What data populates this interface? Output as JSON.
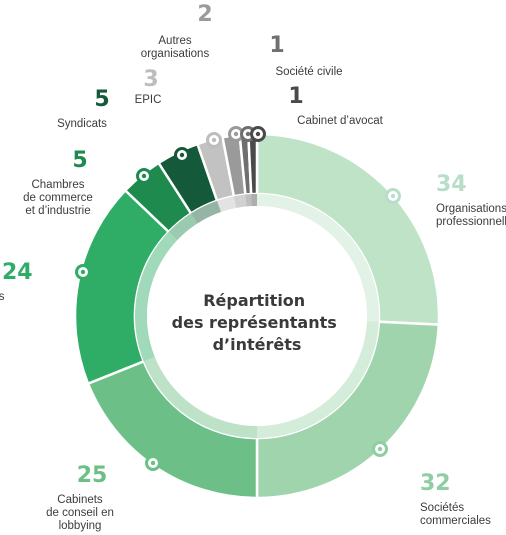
{
  "chart_data": {
    "type": "pie",
    "title": "Répartition des représentants d’intérêts",
    "title_lines": [
      "Répartition",
      "des représentants",
      "d’intérêts"
    ],
    "slices": [
      {
        "label": "Organisations professionnelles",
        "label_lines": [
          "Organisations",
          "professionnelles"
        ],
        "value": 34,
        "color": "#bfe3c7",
        "value_color": "#b8deca"
      },
      {
        "label": "Sociétés commerciales",
        "label_lines": [
          "Sociétés",
          "commerciales"
        ],
        "value": 32,
        "color": "#9fd4ad",
        "value_color": "#8fcda2"
      },
      {
        "label": "Cabinets de conseil en lobbying",
        "label_lines": [
          "Cabinets",
          "de conseil en",
          "lobbying"
        ],
        "value": 25,
        "color": "#6cbf86",
        "value_color": "#6cbf86"
      },
      {
        "label": "Associations",
        "label_lines": [
          "Associations"
        ],
        "value": 24,
        "color": "#2fad66",
        "value_color": "#2fad66"
      },
      {
        "label": "Chambres de commerce et d’industrie",
        "label_lines": [
          "Chambres",
          "de commerce",
          "et d’industrie"
        ],
        "value": 5,
        "color": "#1e8a4d",
        "value_color": "#1e8a4d"
      },
      {
        "label": "Syndicats",
        "label_lines": [
          "Syndicats"
        ],
        "value": 5,
        "color": "#14593a",
        "value_color": "#14593a"
      },
      {
        "label": "EPIC",
        "label_lines": [
          "EPIC"
        ],
        "value": 3,
        "color": "#c2c2c2",
        "value_color": "#bdbdbd"
      },
      {
        "label": "Autres organisations",
        "label_lines": [
          "Autres",
          "organisations"
        ],
        "value": 2,
        "color": "#9a9a9a",
        "value_color": "#9a9a9a"
      },
      {
        "label": "Société civile",
        "label_lines": [
          "Société civile"
        ],
        "value": 1,
        "color": "#6f6f6f",
        "value_color": "#6f6f6f"
      },
      {
        "label": "Cabinet d’avocat",
        "label_lines": [
          "Cabinet d’avocat"
        ],
        "value": 1,
        "color": "#4a4a4a",
        "value_color": "#4a4a4a"
      }
    ],
    "legend": "none",
    "labels": "callouts"
  }
}
